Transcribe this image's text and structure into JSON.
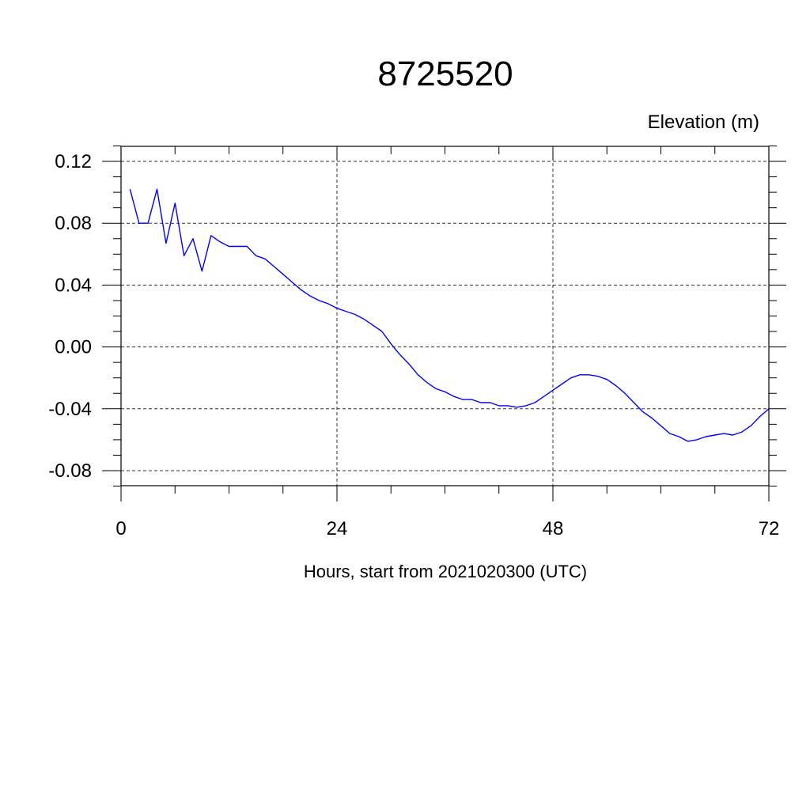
{
  "chart_data": {
    "type": "line",
    "title": "8725520",
    "ylabel": "Elevation (m)",
    "xlabel": "Hours, start from 2021020300 (UTC)",
    "xlim": [
      0,
      72
    ],
    "ylim": [
      -0.09,
      0.13
    ],
    "x_ticks": [
      0,
      24,
      48,
      72
    ],
    "x_tick_labels": [
      "0",
      "24",
      "48",
      "72"
    ],
    "y_ticks": [
      0.12,
      0.08,
      0.04,
      0.0,
      -0.04,
      -0.08
    ],
    "y_tick_labels": [
      "0.12",
      "0.08",
      "0.04",
      "0.00",
      "-0.04",
      "-0.08"
    ],
    "grid": true,
    "series": [
      {
        "color": "#0000ff",
        "x": [
          1,
          2,
          3,
          4,
          5,
          6,
          7,
          8,
          9,
          10,
          11,
          12,
          13,
          14,
          15,
          16,
          17,
          18,
          19,
          20,
          21,
          22,
          23,
          24,
          25,
          26,
          27,
          28,
          29,
          30,
          31,
          32,
          33,
          34,
          35,
          36,
          37,
          38,
          39,
          40,
          41,
          42,
          43,
          44,
          45,
          46,
          47,
          48,
          49,
          50,
          51,
          52,
          53,
          54,
          55,
          56,
          57,
          58,
          59,
          60,
          61,
          62,
          63,
          64,
          65,
          66,
          67,
          68,
          69,
          70,
          71,
          72
        ],
        "y": [
          0.102,
          0.08,
          0.08,
          0.102,
          0.067,
          0.093,
          0.059,
          0.07,
          0.049,
          0.072,
          0.068,
          0.065,
          0.065,
          0.065,
          0.059,
          0.057,
          0.052,
          0.047,
          0.042,
          0.037,
          0.033,
          0.03,
          0.028,
          0.025,
          0.023,
          0.021,
          0.018,
          0.014,
          0.01,
          0.002,
          -0.005,
          -0.011,
          -0.018,
          -0.023,
          -0.027,
          -0.029,
          -0.032,
          -0.034,
          -0.034,
          -0.036,
          -0.036,
          -0.038,
          -0.038,
          -0.039,
          -0.038,
          -0.036,
          -0.032,
          -0.028,
          -0.024,
          -0.02,
          -0.018,
          -0.018,
          -0.019,
          -0.021,
          -0.025,
          -0.03,
          -0.036,
          -0.042,
          -0.046,
          -0.051,
          -0.056,
          -0.058,
          -0.061,
          -0.06,
          -0.058,
          -0.057,
          -0.056,
          -0.057,
          -0.055,
          -0.051,
          -0.045,
          -0.04
        ]
      }
    ]
  }
}
